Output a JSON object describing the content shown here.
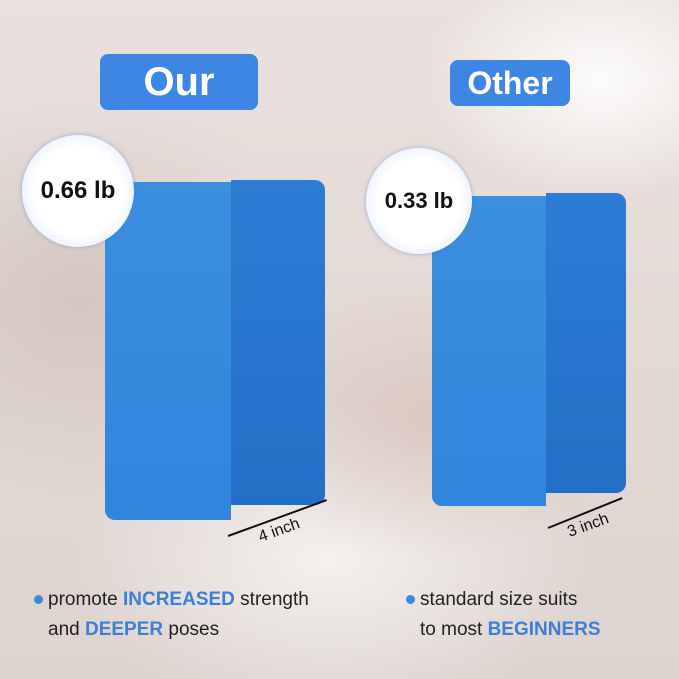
{
  "labels": {
    "ours": "Our",
    "other": "Other"
  },
  "weights": {
    "ours": "0.66 lb",
    "other": "0.33 lb"
  },
  "dimensions": {
    "ours": "4 inch",
    "other": "3 inch"
  },
  "features": {
    "ours": {
      "line1_pre": "promote ",
      "line1_hl": "INCREASED",
      "line1_post": " strength",
      "line2_pre": "and ",
      "line2_hl": "DEEPER",
      "line2_post": " poses"
    },
    "other": {
      "line1": "standard size suits",
      "line2_pre": "to most ",
      "line2_hl": "BEGINNERS"
    }
  },
  "colors": {
    "accent": "#3d86e3",
    "block": "#2f86db"
  }
}
